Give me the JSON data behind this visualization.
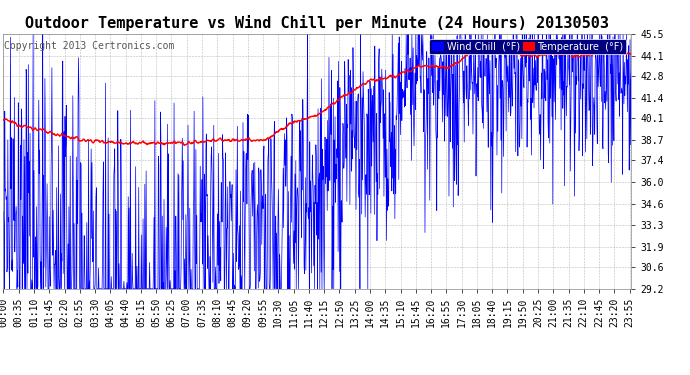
{
  "title": "Outdoor Temperature vs Wind Chill per Minute (24 Hours) 20130503",
  "copyright": "Copyright 2013 Certronics.com",
  "legend_labels": [
    "Wind Chill  (°F)",
    "Temperature  (°F)"
  ],
  "legend_colors": [
    "#0000ff",
    "#ff0000"
  ],
  "bg_color": "#ffffff",
  "plot_bg_color": "#ffffff",
  "grid_color": "#aaaaaa",
  "title_color": "#000000",
  "tick_color": "#000000",
  "yticks": [
    29.2,
    30.6,
    31.9,
    33.3,
    34.6,
    36.0,
    37.4,
    38.7,
    40.1,
    41.4,
    42.8,
    44.1,
    45.5
  ],
  "ymin": 29.2,
  "ymax": 45.5,
  "n_minutes": 1440,
  "temp_color": "#ff0000",
  "wind_chill_color": "#0000ff",
  "xtick_labels": [
    "00:00",
    "00:35",
    "01:10",
    "01:45",
    "02:20",
    "02:55",
    "03:30",
    "04:05",
    "04:40",
    "05:15",
    "05:50",
    "06:25",
    "07:00",
    "07:35",
    "08:10",
    "08:45",
    "09:20",
    "09:55",
    "10:30",
    "11:05",
    "11:40",
    "12:15",
    "12:50",
    "13:25",
    "14:00",
    "14:35",
    "15:10",
    "15:45",
    "16:20",
    "16:55",
    "17:30",
    "18:05",
    "18:40",
    "19:15",
    "19:50",
    "20:25",
    "21:00",
    "21:35",
    "22:10",
    "22:45",
    "23:20",
    "23:55"
  ],
  "font_size_title": 11,
  "font_size_ticks": 7,
  "font_size_copyright": 7,
  "font_size_legend": 7,
  "temp_keypoints_x": [
    0,
    60,
    180,
    300,
    420,
    480,
    540,
    600,
    660,
    720,
    780,
    840,
    900,
    960,
    1020,
    1080,
    1140,
    1200,
    1260,
    1320,
    1380,
    1439
  ],
  "temp_keypoints_y": [
    40.0,
    39.5,
    38.7,
    38.5,
    38.5,
    38.7,
    38.7,
    38.7,
    39.8,
    40.3,
    41.5,
    42.5,
    42.8,
    43.5,
    43.3,
    44.5,
    44.5,
    44.1,
    44.2,
    44.1,
    44.3,
    44.2
  ],
  "wc_base_keypoints_x": [
    0,
    120,
    240,
    360,
    480,
    540,
    600,
    660,
    720,
    780,
    840,
    900,
    960,
    1020,
    1080,
    1140,
    1200,
    1260,
    1320,
    1380,
    1439
  ],
  "wc_base_keypoints_y": [
    39.5,
    37.5,
    32.0,
    31.5,
    38.0,
    38.2,
    38.0,
    39.0,
    40.0,
    41.0,
    42.0,
    42.5,
    43.0,
    43.0,
    44.3,
    44.2,
    43.8,
    43.9,
    43.8,
    44.0,
    44.0
  ],
  "wc_noise_scale_keypoints_x": [
    0,
    180,
    360,
    540,
    720,
    900,
    1080,
    1260,
    1439
  ],
  "wc_noise_scale_keypoints_y": [
    3.5,
    5.0,
    5.5,
    1.0,
    2.5,
    2.0,
    2.0,
    2.0,
    2.0
  ]
}
